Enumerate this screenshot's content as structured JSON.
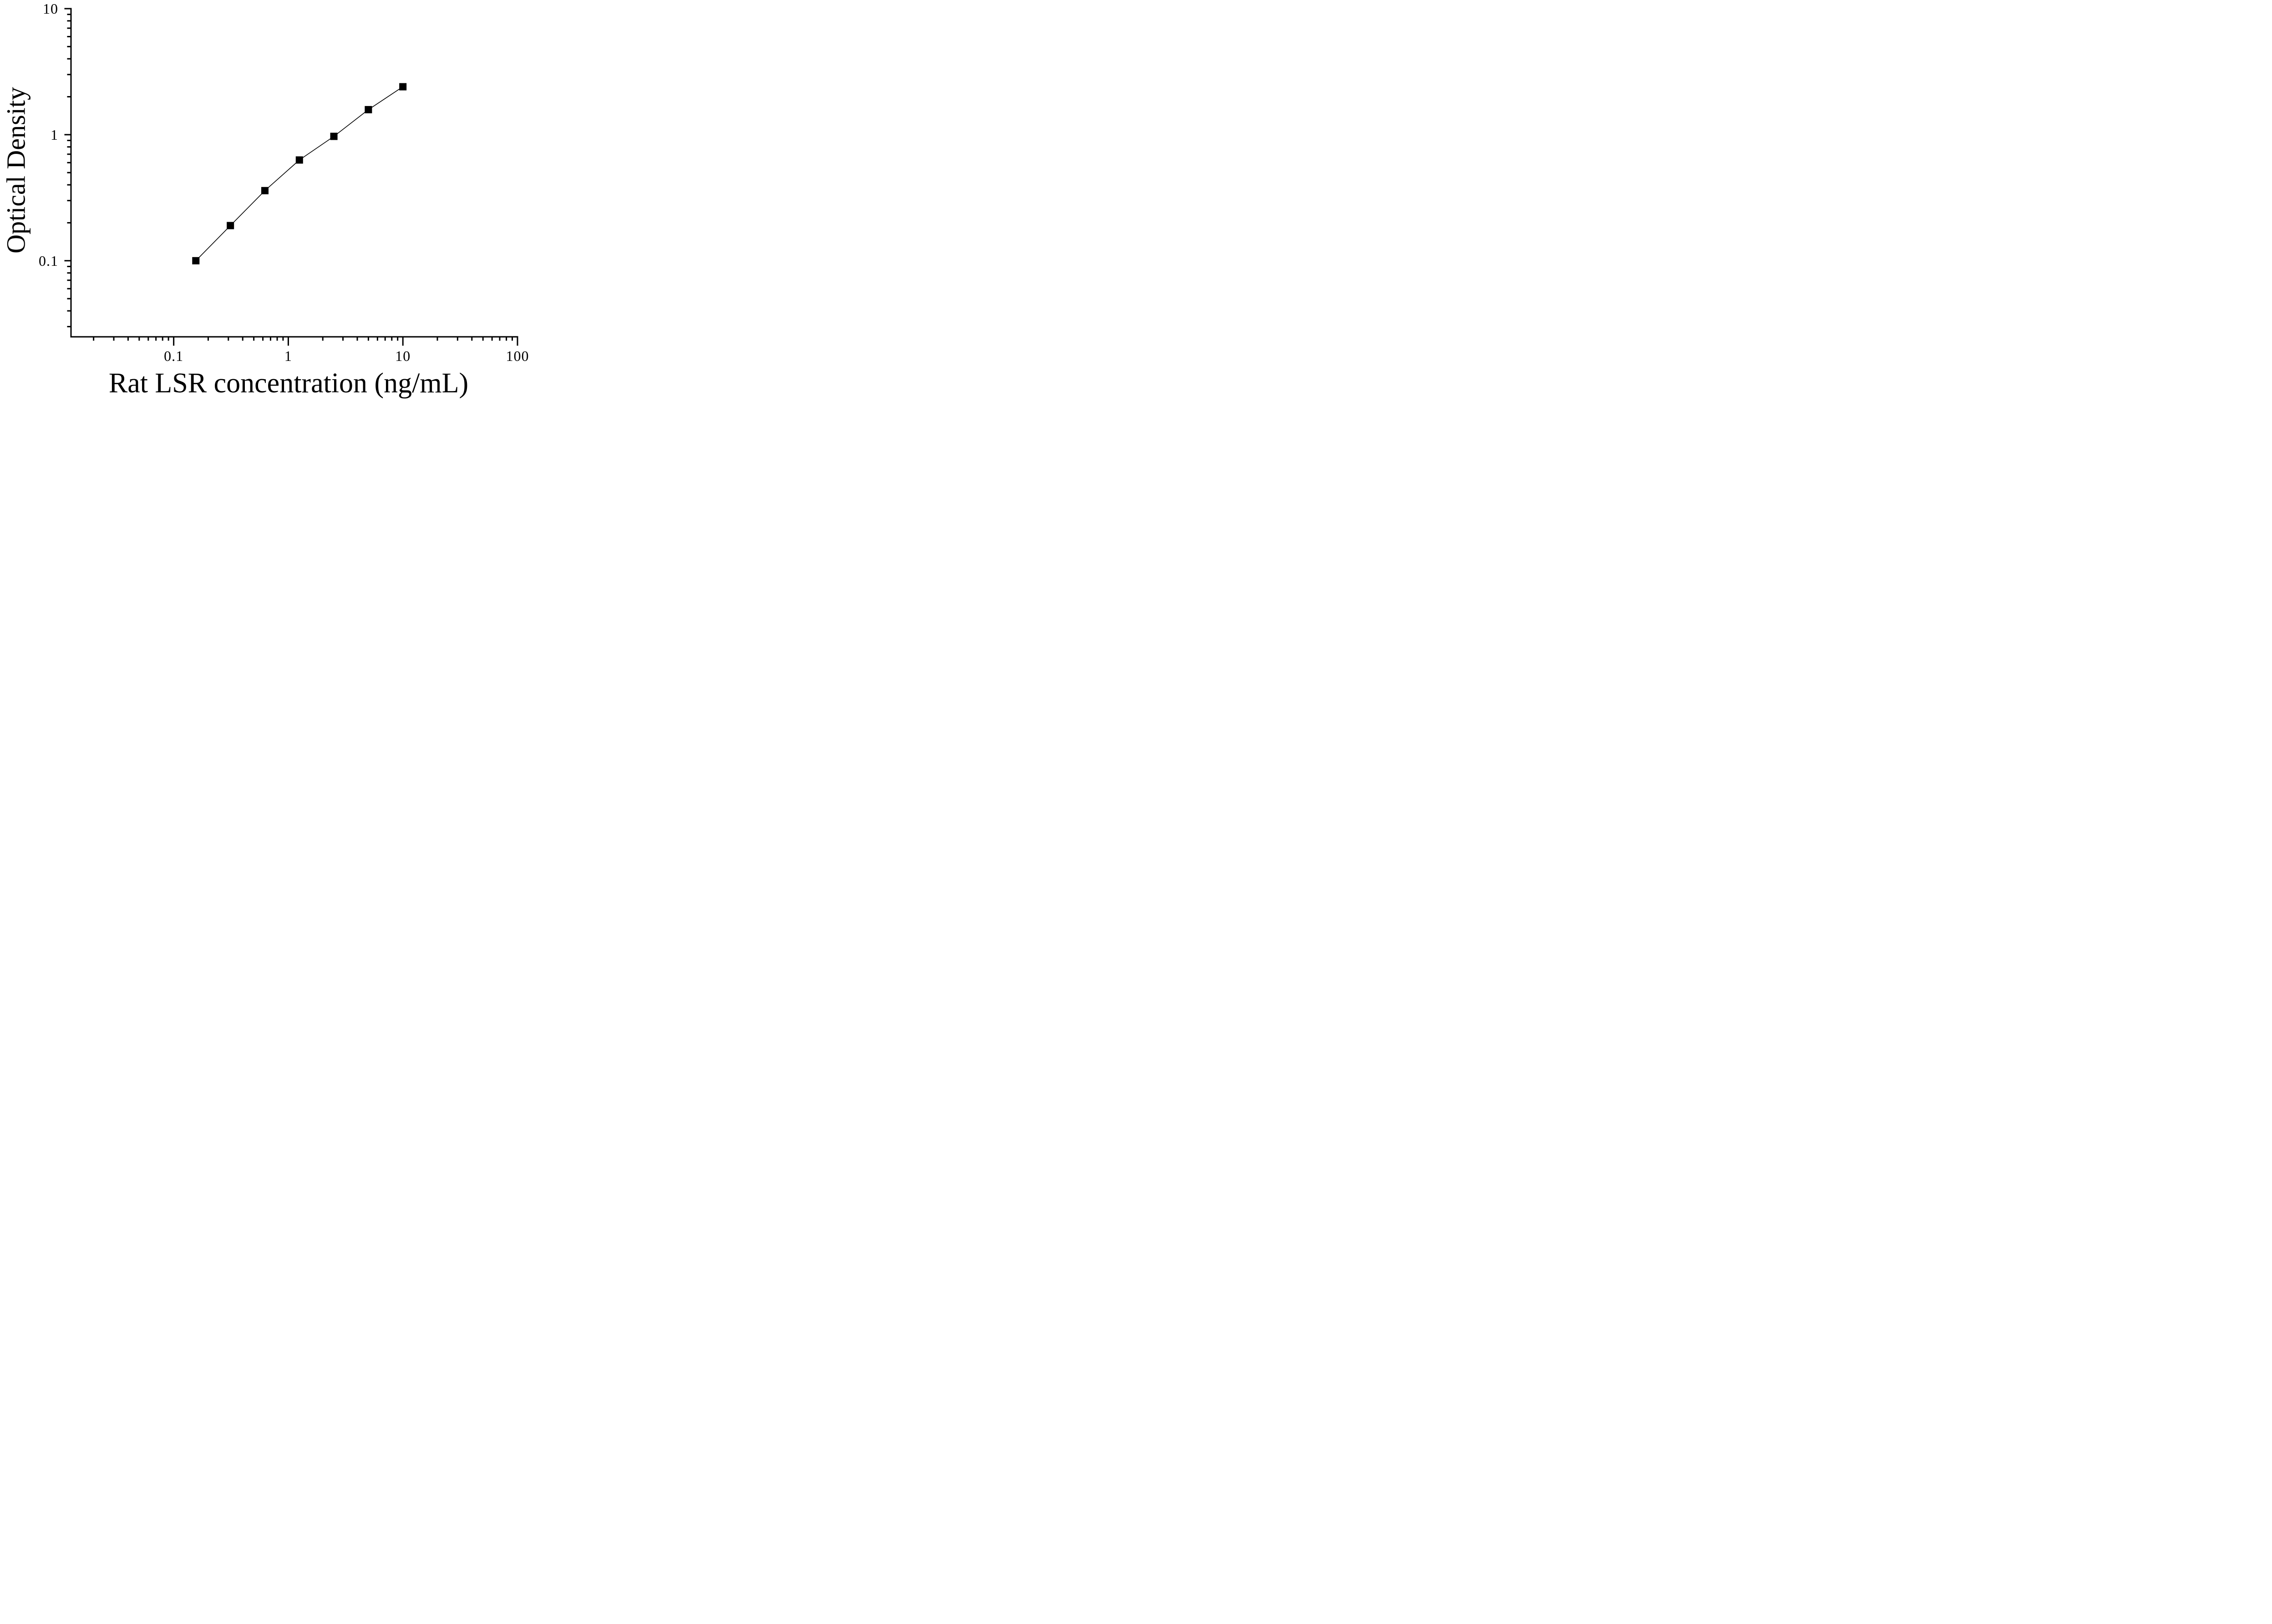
{
  "figure": {
    "background_color": "#ffffff",
    "ink_color": "#000000"
  },
  "chart_data": {
    "type": "line",
    "title": "",
    "xlabel": "Rat LSR concentration (ng/mL)",
    "ylabel": "Optical Density",
    "x_scale": "log",
    "y_scale": "log",
    "series": [
      {
        "name": "standard-curve",
        "marker": "filled-square",
        "marker_color": "#000000",
        "line_color": "#000000",
        "x": [
          0.156,
          0.3125,
          0.625,
          1.25,
          2.5,
          5,
          10
        ],
        "y": [
          0.1,
          0.19,
          0.36,
          0.63,
          0.97,
          1.58,
          2.4
        ]
      }
    ],
    "xlim": [
      0.0127,
      100
    ],
    "ylim": [
      0.0249,
      10
    ],
    "x_major_ticks": [
      0.1,
      1,
      10,
      100
    ],
    "x_major_tick_labels": [
      "0.1",
      "1",
      "10",
      "100"
    ],
    "y_major_ticks": [
      10,
      1,
      0.1
    ],
    "y_major_tick_labels": [
      "10",
      "1",
      "0.1"
    ],
    "minor_ticks": "log-decades-2-to-9",
    "grid": false,
    "legend": null
  }
}
